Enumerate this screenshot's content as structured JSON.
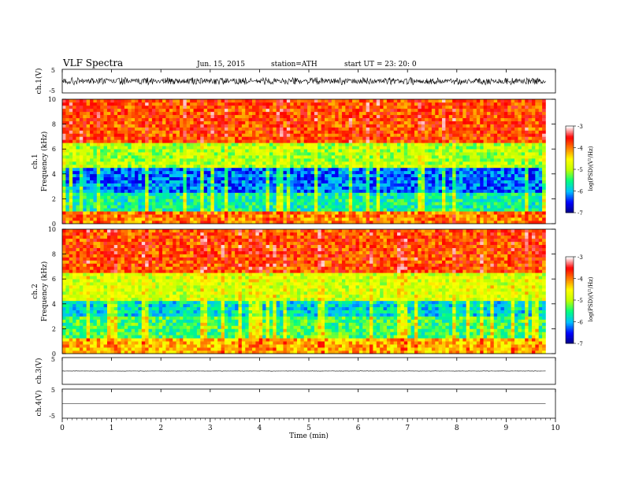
{
  "header": {
    "title": "VLF  Spectra",
    "date": "Jun. 15, 2015",
    "station": "station=ATH",
    "start": "start  UT  =   23: 20: 0"
  },
  "chart_data": [
    {
      "type": "line",
      "panel": "ch1-waveform",
      "ylabel": "ch.1(V)",
      "ylim": [
        -5,
        5
      ],
      "yticks": [
        "5",
        "-5"
      ],
      "x_range_min": [
        0,
        9.8
      ],
      "description_level": "noisy waveform centred near 0 V with amplitude about ±1.5 V"
    },
    {
      "type": "heatmap",
      "panel": "ch1-spectrogram",
      "ylabel": "Frequency (kHz)",
      "channel_label": "ch.1",
      "ylim": [
        0,
        10
      ],
      "yticks": [
        "0",
        "2",
        "4",
        "6",
        "8",
        "10"
      ],
      "colorbar": {
        "label": "log(PSD)(V²/Hz)",
        "range": [
          -7,
          -3
        ],
        "ticks": [
          "-3",
          "-4",
          "-5",
          "-6",
          "-7"
        ]
      },
      "bands": [
        {
          "f_min": 0,
          "f_max": 1.0,
          "level": -4.0
        },
        {
          "f_min": 1.0,
          "f_max": 2.6,
          "level": -5.6
        },
        {
          "f_min": 2.6,
          "f_max": 4.5,
          "level": -6.2
        },
        {
          "f_min": 4.5,
          "f_max": 6.5,
          "level": -5.0
        },
        {
          "f_min": 6.5,
          "f_max": 10.0,
          "level": -3.8
        }
      ]
    },
    {
      "type": "heatmap",
      "panel": "ch2-spectrogram",
      "ylabel": "Frequency (kHz)",
      "channel_label": "ch.2",
      "ylim": [
        0,
        10
      ],
      "yticks": [
        "0",
        "2",
        "4",
        "6",
        "8",
        "10"
      ],
      "colorbar": {
        "label": "log(PSD)(V²/Hz)",
        "range": [
          -7,
          -3
        ],
        "ticks": [
          "-3",
          "-4",
          "-5",
          "-6",
          "-7"
        ]
      },
      "bands": [
        {
          "f_min": 0,
          "f_max": 1.2,
          "level": -4.2
        },
        {
          "f_min": 1.2,
          "f_max": 3.0,
          "level": -5.4
        },
        {
          "f_min": 3.0,
          "f_max": 4.2,
          "level": -5.8
        },
        {
          "f_min": 4.2,
          "f_max": 6.5,
          "level": -4.8
        },
        {
          "f_min": 6.5,
          "f_max": 10.0,
          "level": -3.8
        }
      ]
    },
    {
      "type": "line",
      "panel": "ch3-waveform",
      "ylabel": "ch.3(V)",
      "ylim": [
        -5,
        5
      ],
      "yticks": [
        "5",
        "-5"
      ],
      "x_range_min": [
        0,
        9.8
      ],
      "level": 0
    },
    {
      "type": "line",
      "panel": "ch4-waveform",
      "ylabel": "ch.4(V)",
      "ylim": [
        -5,
        5
      ],
      "yticks": [
        "5",
        "-5"
      ],
      "x_range_min": [
        0,
        9.8
      ],
      "level": 0
    }
  ],
  "xaxis": {
    "label": "Time  (min)",
    "range": [
      0,
      10
    ],
    "ticks": [
      "0",
      "1",
      "2",
      "3",
      "4",
      "5",
      "6",
      "7",
      "8",
      "9",
      "10"
    ]
  },
  "colors": {
    "colormap": [
      "#000080",
      "#0000ff",
      "#00c0ff",
      "#00ff80",
      "#c0ff00",
      "#ffff00",
      "#ff8000",
      "#ff0000",
      "#ffffff"
    ]
  }
}
